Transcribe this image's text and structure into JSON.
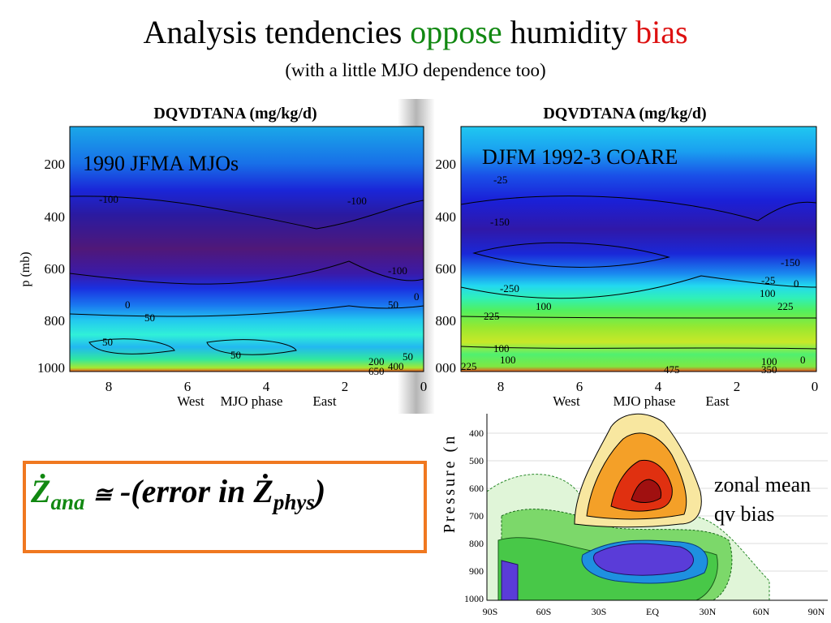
{
  "slide": {
    "title_part1": "Analysis tendencies",
    "title_oppose": "oppose",
    "title_part2": "humidity",
    "title_bias": "bias",
    "subtitle": "(with a little MJO dependence too)",
    "equation": {
      "lhs": "Ż",
      "lhs_sub": "ana",
      "approx": "≅",
      "rhs": "-(error in Ż",
      "rhs_sub": "phys",
      "rhs_close": ")"
    },
    "side_label_line1": "zonal mean",
    "side_label_line2": "qv bias"
  },
  "chart_data": [
    {
      "type": "heatmap",
      "title": "DQVDTANA (mg/kg/d)",
      "annotation": "1990 JFMA MJOs",
      "ylabel": "p (mb)",
      "xlabel": "MJO phase",
      "x_direction_labels": [
        "West",
        "East"
      ],
      "x_ticks": [
        "8",
        "6",
        "4",
        "2",
        "0"
      ],
      "y_ticks": [
        "200",
        "400",
        "600",
        "800",
        "1000"
      ],
      "xlim": [
        9,
        0
      ],
      "ylim": [
        1000,
        50
      ],
      "contour_labels": [
        "-100",
        "-100",
        "-100",
        "0",
        "0",
        "50",
        "50",
        "50",
        "50",
        "50",
        "200",
        "650",
        "400"
      ]
    },
    {
      "type": "heatmap",
      "title": "DQVDTANA (mg/kg/d)",
      "annotation": "DJFM 1992-3 COARE",
      "xlabel": "MJO phase",
      "x_direction_labels": [
        "West",
        "East"
      ],
      "x_ticks": [
        "8",
        "6",
        "4",
        "2",
        "0"
      ],
      "y_ticks": [
        "200",
        "400",
        "600",
        "800",
        "000"
      ],
      "xlim": [
        9,
        0
      ],
      "ylim": [
        1000,
        50
      ],
      "contour_labels": [
        "-25",
        "-150",
        "-150",
        "-250",
        "-25",
        "0",
        "100",
        "100",
        "225",
        "225",
        "100",
        "100",
        "225",
        "475",
        "100",
        "350",
        "0"
      ]
    },
    {
      "type": "heatmap",
      "ylabel": "Pressure (n",
      "x_ticks": [
        "90S",
        "60S",
        "30S",
        "EQ",
        "30N",
        "60N",
        "90N"
      ],
      "y_ticks": [
        "400",
        "500",
        "600",
        "700",
        "800",
        "900",
        "1000"
      ],
      "xlim": [
        -90,
        90
      ],
      "ylim": [
        1000,
        370
      ]
    }
  ]
}
